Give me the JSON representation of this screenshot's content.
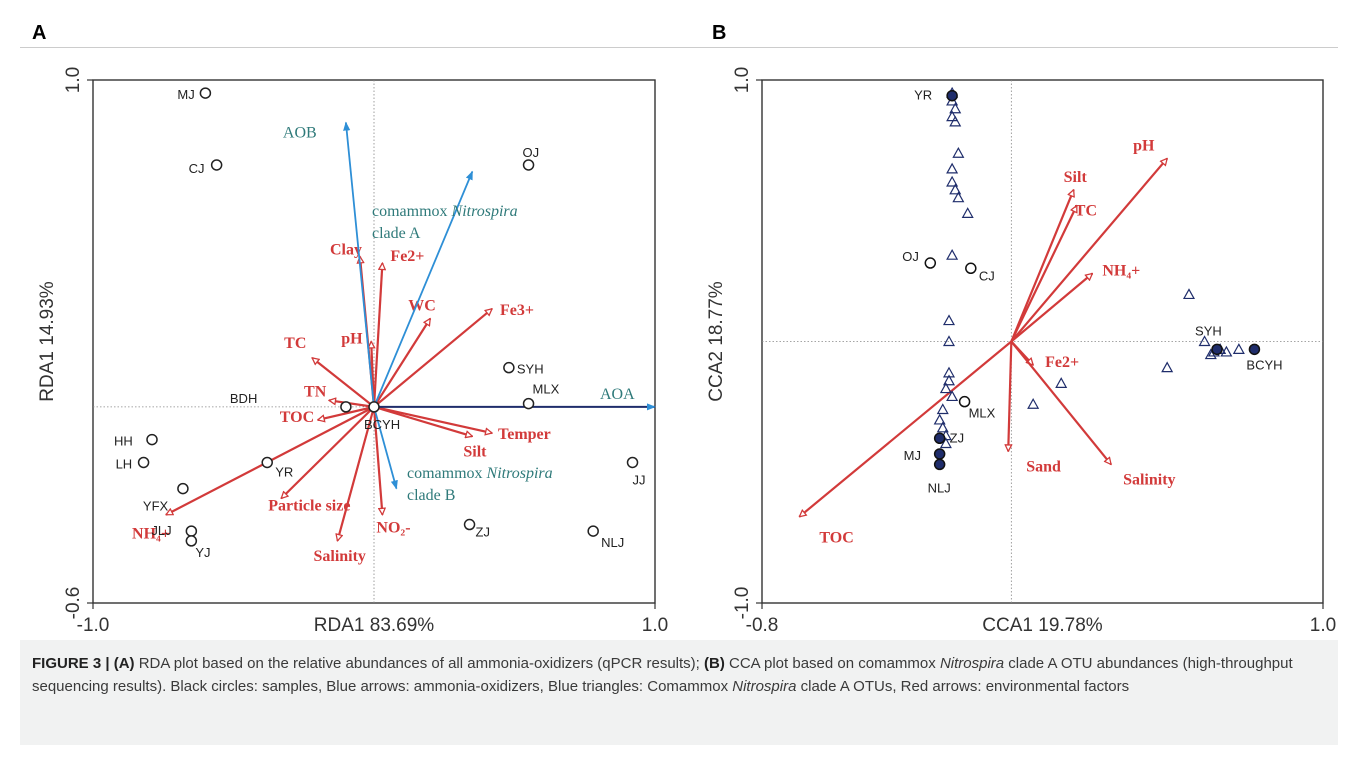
{
  "panel_a_letter": "A",
  "panel_b_letter": "B",
  "chart_data": [
    {
      "type": "scatter",
      "panel": "A",
      "xlabel": "RDA1  83.69%",
      "ylabel": "RDA1  14.93%",
      "xlim": [
        -1.0,
        1.0
      ],
      "ylim": [
        -0.6,
        1.0
      ],
      "x_ticks": [
        "-1.0",
        "1.0"
      ],
      "y_ticks": [
        "1.0",
        "-0.6"
      ],
      "samples": [
        {
          "label": "MJ",
          "x": -0.6,
          "y": 0.96
        },
        {
          "label": "CJ",
          "x": -0.56,
          "y": 0.74
        },
        {
          "label": "OJ",
          "x": 0.55,
          "y": 0.74
        },
        {
          "label": "SYH",
          "x": 0.48,
          "y": 0.12
        },
        {
          "label": "MLX",
          "x": 0.55,
          "y": 0.01
        },
        {
          "label": "BDH",
          "x": -0.1,
          "y": 0.0
        },
        {
          "label": "BCYH",
          "x": 0.0,
          "y": 0.0
        },
        {
          "label": "HH",
          "x": -0.79,
          "y": -0.1
        },
        {
          "label": "LH",
          "x": -0.82,
          "y": -0.17
        },
        {
          "label": "YR",
          "x": -0.38,
          "y": -0.17
        },
        {
          "label": "YFX",
          "x": -0.68,
          "y": -0.25
        },
        {
          "label": "JLJ",
          "x": -0.65,
          "y": -0.38
        },
        {
          "label": "YJ",
          "x": -0.65,
          "y": -0.41
        },
        {
          "label": "ZJ",
          "x": 0.34,
          "y": -0.36
        },
        {
          "label": "NLJ",
          "x": 0.78,
          "y": -0.38
        },
        {
          "label": "JJ",
          "x": 0.92,
          "y": -0.17
        }
      ],
      "ammonia_oxidizers": [
        {
          "label": "AOB",
          "x": -0.1,
          "y": 0.87
        },
        {
          "label": "comammox Nitrospira clade A",
          "x": 0.35,
          "y": 0.72
        },
        {
          "label": "AOA",
          "x": 1.0,
          "y": 0.0
        },
        {
          "label": "comammox Nitrospira clade B",
          "x": 0.08,
          "y": -0.25
        }
      ],
      "environmental_factors": [
        {
          "label": "Clay",
          "x": -0.05,
          "y": 0.46
        },
        {
          "label": "Fe2+",
          "x": 0.03,
          "y": 0.44
        },
        {
          "label": "WC",
          "x": 0.2,
          "y": 0.27
        },
        {
          "label": "Fe3+",
          "x": 0.42,
          "y": 0.3
        },
        {
          "label": "pH",
          "x": -0.01,
          "y": 0.2
        },
        {
          "label": "TC",
          "x": -0.22,
          "y": 0.15
        },
        {
          "label": "TN",
          "x": -0.16,
          "y": 0.02
        },
        {
          "label": "TOC",
          "x": -0.2,
          "y": -0.04
        },
        {
          "label": "Temper",
          "x": 0.42,
          "y": -0.08
        },
        {
          "label": "Silt",
          "x": 0.35,
          "y": -0.09
        },
        {
          "label": "NH4+",
          "x": -0.74,
          "y": -0.33
        },
        {
          "label": "Particle size",
          "x": -0.33,
          "y": -0.28
        },
        {
          "label": "Salinity",
          "x": -0.13,
          "y": -0.41
        },
        {
          "label": "NO2-",
          "x": 0.03,
          "y": -0.33
        }
      ]
    },
    {
      "type": "scatter",
      "panel": "B",
      "xlabel": "CCA1  19.78%",
      "ylabel": "CCA2  18.77%",
      "xlim": [
        -0.8,
        1.0
      ],
      "ylim": [
        -1.0,
        1.0
      ],
      "x_ticks": [
        "-0.8",
        "1.0"
      ],
      "y_ticks": [
        "1.0",
        "-1.0"
      ],
      "samples": [
        {
          "label": "YR",
          "x": -0.19,
          "y": 0.94
        },
        {
          "label": "OJ",
          "x": -0.26,
          "y": 0.3
        },
        {
          "label": "CJ",
          "x": -0.13,
          "y": 0.28
        },
        {
          "label": "SYH",
          "x": 0.66,
          "y": -0.03
        },
        {
          "label": "BCYH",
          "x": 0.78,
          "y": -0.03
        },
        {
          "label": "MLX",
          "x": -0.15,
          "y": -0.23
        },
        {
          "label": "ZJ",
          "x": -0.23,
          "y": -0.37
        },
        {
          "label": "MJ",
          "x": -0.23,
          "y": -0.43
        },
        {
          "label": "NLJ",
          "x": -0.23,
          "y": -0.47
        }
      ],
      "otus": [
        {
          "x": -0.19,
          "y": 0.95
        },
        {
          "x": -0.19,
          "y": 0.92
        },
        {
          "x": -0.18,
          "y": 0.89
        },
        {
          "x": -0.19,
          "y": 0.86
        },
        {
          "x": -0.18,
          "y": 0.84
        },
        {
          "x": -0.17,
          "y": 0.72
        },
        {
          "x": -0.19,
          "y": 0.66
        },
        {
          "x": -0.19,
          "y": 0.61
        },
        {
          "x": -0.18,
          "y": 0.58
        },
        {
          "x": -0.17,
          "y": 0.55
        },
        {
          "x": -0.14,
          "y": 0.49
        },
        {
          "x": -0.19,
          "y": 0.33
        },
        {
          "x": -0.2,
          "y": 0.08
        },
        {
          "x": -0.2,
          "y": 0.0
        },
        {
          "x": -0.2,
          "y": -0.12
        },
        {
          "x": -0.2,
          "y": -0.15
        },
        {
          "x": -0.21,
          "y": -0.18
        },
        {
          "x": -0.19,
          "y": -0.21
        },
        {
          "x": -0.22,
          "y": -0.26
        },
        {
          "x": -0.23,
          "y": -0.3
        },
        {
          "x": -0.22,
          "y": -0.33
        },
        {
          "x": -0.21,
          "y": -0.36
        },
        {
          "x": -0.21,
          "y": -0.39
        },
        {
          "x": 0.16,
          "y": -0.16
        },
        {
          "x": 0.07,
          "y": -0.24
        },
        {
          "x": 0.57,
          "y": 0.18
        },
        {
          "x": 0.62,
          "y": 0.0
        },
        {
          "x": 0.64,
          "y": -0.05
        },
        {
          "x": 0.65,
          "y": -0.04
        },
        {
          "x": 0.67,
          "y": -0.03
        },
        {
          "x": 0.69,
          "y": -0.04
        },
        {
          "x": 0.73,
          "y": -0.03
        },
        {
          "x": 0.5,
          "y": -0.1
        }
      ],
      "environmental_factors": [
        {
          "label": "pH",
          "x": 0.5,
          "y": 0.7
        },
        {
          "label": "Silt",
          "x": 0.2,
          "y": 0.58
        },
        {
          "label": "TC",
          "x": 0.21,
          "y": 0.52
        },
        {
          "label": "NH4+",
          "x": 0.26,
          "y": 0.26
        },
        {
          "label": "Fe2+",
          "x": 0.07,
          "y": -0.09
        },
        {
          "label": "Sand",
          "x": -0.01,
          "y": -0.42
        },
        {
          "label": "Salinity",
          "x": 0.32,
          "y": -0.47
        },
        {
          "label": "TOC",
          "x": -0.68,
          "y": -0.67
        }
      ]
    }
  ],
  "caption": {
    "figure_label": "FIGURE 3 | (A)",
    "part1": " RDA plot based on the relative abundances of all ammonia-oxidizers (qPCR results); ",
    "label_b": "(B)",
    "part2": " CCA plot based on comammox ",
    "italic1": "Nitrospira",
    "part3": " clade A OTU abundances (high-throughput sequencing results). Black circles: samples, Blue arrows: ammonia-oxidizers, Blue triangles: Comammox ",
    "italic2": "Nitrospira",
    "part4": " clade A OTUs, Red arrows: environmental factors"
  },
  "colors": {
    "env_arrow": "#d23a3a",
    "ammonia_oxidizer_arrow": "#2e8fd6",
    "aoa_arrow": "#1f2d6b",
    "sample_marker": "#222222",
    "otu_marker": "#1f2d6b",
    "oxidizer_label": "#2f7a7a"
  }
}
